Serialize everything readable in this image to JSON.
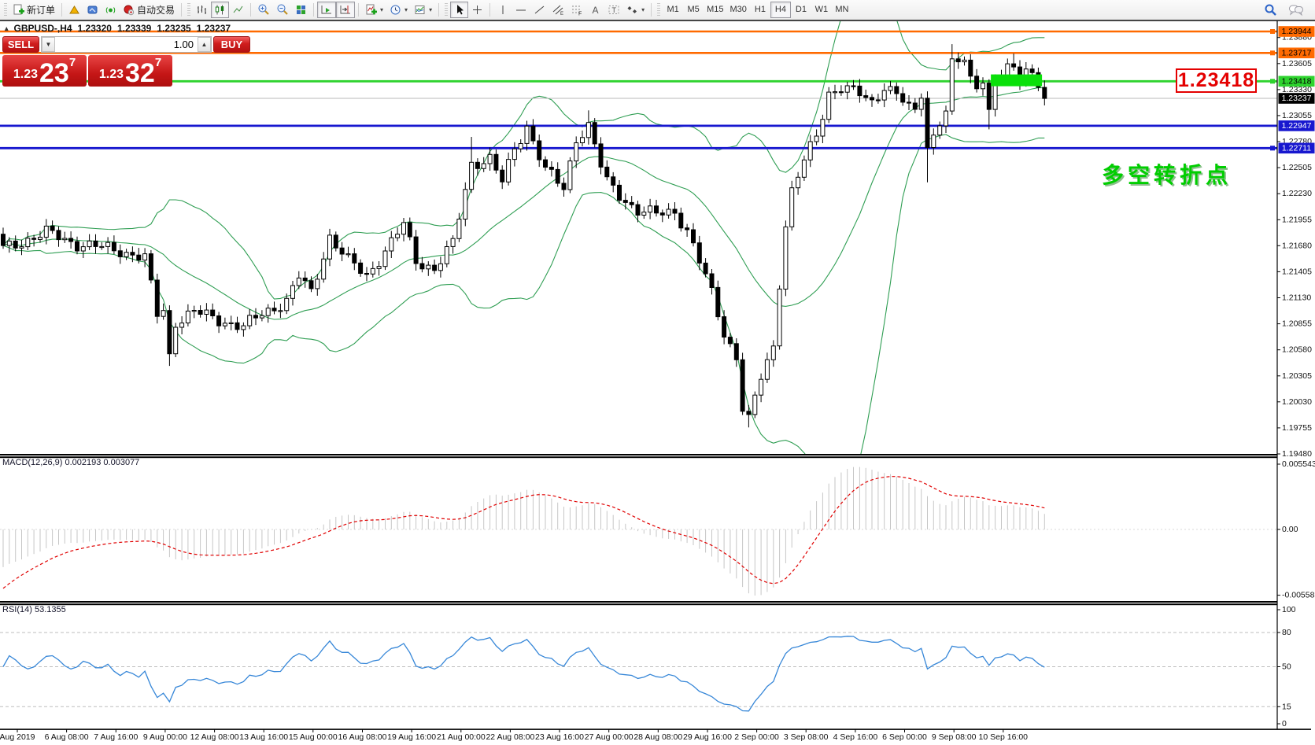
{
  "toolbar": {
    "new_order": "新订单",
    "auto_trading": "自动交易",
    "timeframes": [
      "M1",
      "M5",
      "M15",
      "M30",
      "H1",
      "H4",
      "D1",
      "W1",
      "MN"
    ],
    "active_timeframe": "H4"
  },
  "title_bar": {
    "collapse_icon": "▴",
    "symbol": "GBPUSD-,H4",
    "open": "1.23320",
    "high": "1.23339",
    "low": "1.23235",
    "close": "1.23237"
  },
  "one_click": {
    "sell_label": "SELL",
    "buy_label": "BUY",
    "volume": "1.00",
    "sell_price_prefix": "1.23",
    "sell_price_big": "23",
    "sell_price_sup": "7",
    "buy_price_prefix": "1.23",
    "buy_price_big": "32",
    "buy_price_sup": "7"
  },
  "annotations": {
    "price_callout": "1.23418",
    "turning_point": "多空转折点"
  },
  "colors": {
    "orange_line": "#ff6a00",
    "green_line": "#2ed32e",
    "blue_line": "#1717cf",
    "current_line": "#b8b8b8",
    "bollinger": "#2f9e53",
    "macd_hist": "#c6c6c6",
    "macd_signal": "#e00000",
    "rsi_line": "#3787d8",
    "highlight_rect": "#0ae00a",
    "callout_red": "#e40000",
    "bull_body": "#ffffff",
    "bear_body": "#000000"
  },
  "chart_data": {
    "type": "candlestick",
    "symbol": "GBPUSD",
    "timeframe": "H4",
    "main": {
      "ylim": [
        1.1948,
        1.23944
      ],
      "bar_count": 170,
      "waypoints": [
        [
          0,
          1.2165
        ],
        [
          7,
          1.2182
        ],
        [
          12,
          1.217
        ],
        [
          19,
          1.2163
        ],
        [
          23,
          1.2155
        ],
        [
          25,
          1.2095
        ],
        [
          26,
          1.21
        ],
        [
          27,
          1.2052
        ],
        [
          28,
          1.2088
        ],
        [
          31,
          1.2098
        ],
        [
          35,
          1.209
        ],
        [
          39,
          1.2082
        ],
        [
          42,
          1.2096
        ],
        [
          46,
          1.211
        ],
        [
          48,
          1.2135
        ],
        [
          50,
          1.2118
        ],
        [
          53,
          1.2178
        ],
        [
          56,
          1.2152
        ],
        [
          59,
          1.2136
        ],
        [
          63,
          1.2172
        ],
        [
          65,
          1.219
        ],
        [
          67,
          1.2152
        ],
        [
          70,
          1.2144
        ],
        [
          73,
          1.217
        ],
        [
          76,
          1.2255
        ],
        [
          79,
          1.226
        ],
        [
          81,
          1.2235
        ],
        [
          83,
          1.227
        ],
        [
          85,
          1.2295
        ],
        [
          88,
          1.2248
        ],
        [
          91,
          1.2228
        ],
        [
          93,
          1.2282
        ],
        [
          95,
          1.2295
        ],
        [
          97,
          1.2252
        ],
        [
          98,
          1.2235
        ],
        [
          100,
          1.2222
        ],
        [
          103,
          1.2205
        ],
        [
          106,
          1.2201
        ],
        [
          109,
          1.2205
        ],
        [
          111,
          1.2184
        ],
        [
          113,
          1.2151
        ],
        [
          115,
          1.2118
        ],
        [
          117,
          1.2076
        ],
        [
          119,
          1.2051
        ],
        [
          120,
          1.1996
        ],
        [
          121,
          1.1983
        ],
        [
          123,
          1.2029
        ],
        [
          125,
          1.2062
        ],
        [
          126,
          1.213
        ],
        [
          127,
          1.219
        ],
        [
          128,
          1.2225
        ],
        [
          130,
          1.2257
        ],
        [
          132,
          1.2285
        ],
        [
          134,
          1.233
        ],
        [
          136,
          1.2335
        ],
        [
          139,
          1.2328
        ],
        [
          141,
          1.232
        ],
        [
          143,
          1.2337
        ],
        [
          145,
          1.2328
        ],
        [
          147,
          1.2312
        ],
        [
          148,
          1.231
        ],
        [
          149,
          1.233
        ],
        [
          150,
          1.2273
        ],
        [
          151,
          1.2285
        ],
        [
          152,
          1.23
        ],
        [
          153,
          1.2309
        ],
        [
          154,
          1.2358
        ],
        [
          155,
          1.2362
        ],
        [
          156,
          1.2365
        ],
        [
          157,
          1.2344
        ],
        [
          158,
          1.2338
        ],
        [
          159,
          1.2347
        ],
        [
          160,
          1.231
        ],
        [
          161,
          1.234
        ],
        [
          162,
          1.2348
        ],
        [
          163,
          1.2355
        ],
        [
          164,
          1.2352
        ],
        [
          165,
          1.2345
        ],
        [
          166,
          1.2358
        ],
        [
          167,
          1.235
        ],
        [
          168,
          1.234
        ],
        [
          169,
          1.23237
        ]
      ],
      "spikes": [
        {
          "bar": 27,
          "low": 1.2041
        },
        {
          "bar": 76,
          "high": 1.2283
        },
        {
          "bar": 95,
          "high": 1.2311
        },
        {
          "bar": 121,
          "low": 1.1976
        },
        {
          "bar": 150,
          "low": 1.2235
        },
        {
          "bar": 154,
          "high": 1.2381
        },
        {
          "bar": 160,
          "low": 1.2291
        },
        {
          "bar": 164,
          "high": 1.2371
        }
      ],
      "bollinger": {
        "period": 20,
        "deviation": 2
      },
      "price_ticks": [
        "1.23880",
        "1.23605",
        "1.23330",
        "1.23055",
        "1.22780",
        "1.22505",
        "1.22230",
        "1.21955",
        "1.21680",
        "1.21405",
        "1.21130",
        "1.20855",
        "1.20580",
        "1.20305",
        "1.20030",
        "1.19755",
        "1.19480"
      ],
      "levels": [
        {
          "price": 1.23944,
          "label": "1.23944",
          "type": "orange",
          "marker": true
        },
        {
          "price": 1.23717,
          "label": "1.23717",
          "type": "orange",
          "marker": true
        },
        {
          "price": 1.23418,
          "label": "1.23418",
          "type": "green",
          "marker": true
        },
        {
          "price": 1.23237,
          "label": "1.23237",
          "type": "current",
          "marker": false
        },
        {
          "price": 1.22947,
          "label": "1.22947",
          "type": "blue",
          "marker": false
        },
        {
          "price": 1.22711,
          "label": "1.22711",
          "type": "blue",
          "marker": true
        }
      ],
      "highlight_rect": {
        "bar_start": 160.3,
        "bar_end": 168.6,
        "price_top": 1.2349,
        "price_bottom": 1.23365
      }
    },
    "x_labels": [
      "Aug 2019",
      "6 Aug 08:00",
      "7 Aug 16:00",
      "9 Aug 00:00",
      "12 Aug 08:00",
      "13 Aug 16:00",
      "15 Aug 00:00",
      "16 Aug 08:00",
      "19 Aug 16:00",
      "21 Aug 00:00",
      "22 Aug 08:00",
      "23 Aug 16:00",
      "27 Aug 00:00",
      "28 Aug 08:00",
      "29 Aug 16:00",
      "2 Sep 00:00",
      "3 Sep 08:00",
      "4 Sep 16:00",
      "6 Sep 00:00",
      "9 Sep 08:00",
      "10 Sep 16:00"
    ],
    "macd": {
      "name": "MACD(12,26,9)",
      "values": "0.002193 0.003077",
      "params": [
        12,
        26,
        9
      ],
      "ylim": [
        -0.005583,
        0.005543
      ],
      "axis_labels": [
        "0.005543",
        "0.00",
        "-0.005583"
      ]
    },
    "rsi": {
      "name": "RSI(14)",
      "value": "53.1355",
      "period": 14,
      "ylim": [
        0,
        100
      ],
      "dashed_levels": [
        80,
        50,
        15
      ],
      "axis_labels": [
        "100",
        "80",
        "50",
        "15",
        "0"
      ]
    }
  }
}
